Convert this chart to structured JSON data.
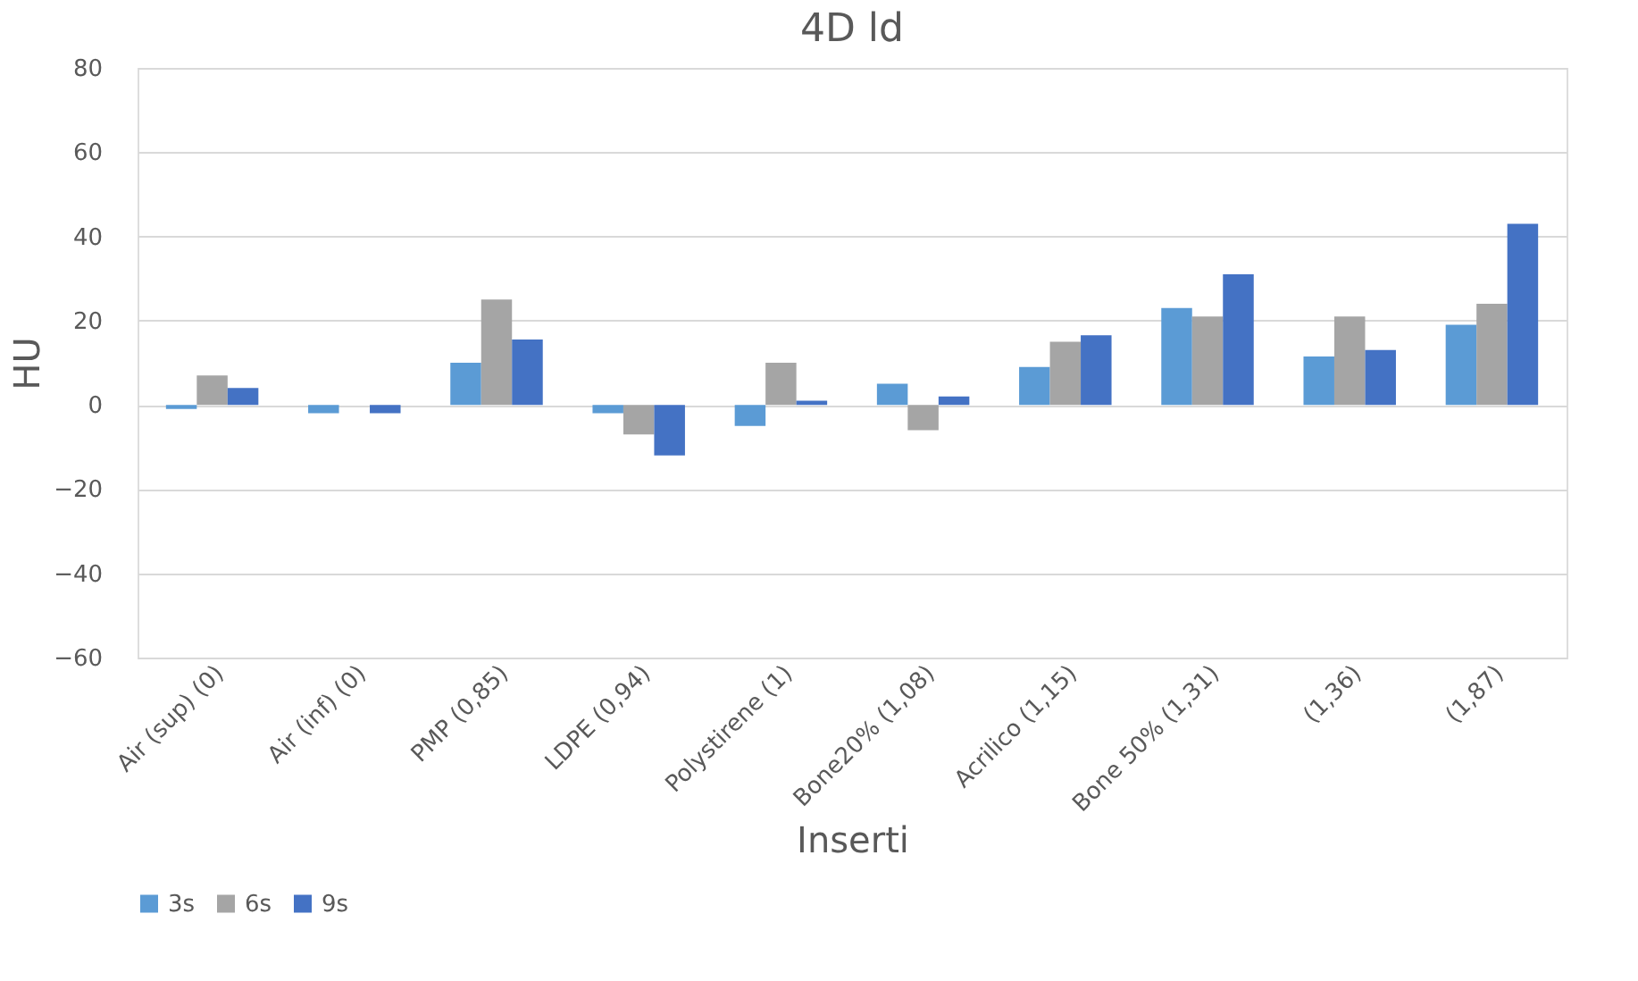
{
  "chart_data": {
    "type": "bar",
    "title": "4D ld",
    "xlabel": "Inserti",
    "ylabel": "HU",
    "categories": [
      "Air (sup) (0)",
      "Air (inf) (0)",
      "PMP (0,85)",
      "LDPE (0,94)",
      "Polystirene (1)",
      "Bone20% (1,08)",
      "Acrilico (1,15)",
      "Bone 50% (1,31)",
      "(1,36)",
      "(1,87)"
    ],
    "series": [
      {
        "name": "3s",
        "color": "#5b9bd5",
        "values": [
          -1,
          -2,
          10,
          -2,
          -5,
          5,
          9,
          23,
          11.5,
          19
        ]
      },
      {
        "name": "6s",
        "color": "#a5a5a5",
        "values": [
          7,
          0,
          25,
          -7,
          10,
          -6,
          15,
          21,
          21,
          24
        ]
      },
      {
        "name": "9s",
        "color": "#4472c4",
        "values": [
          4,
          -2,
          15.5,
          -12,
          1,
          2,
          16.5,
          31,
          13,
          43
        ]
      }
    ],
    "ylim": [
      -60,
      80
    ],
    "yticks": [
      -60,
      -40,
      -20,
      0,
      20,
      40,
      60,
      80
    ],
    "grid": "y",
    "legend": "bottom"
  }
}
